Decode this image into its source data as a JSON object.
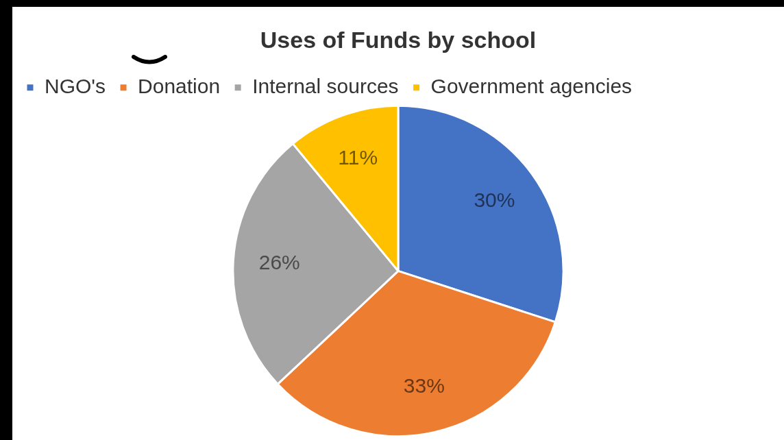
{
  "chart_data": {
    "type": "pie",
    "title": "Uses of Funds by school",
    "categories": [
      "NGO's",
      "Donation",
      "Internal sources",
      "Government agencies"
    ],
    "values": [
      30,
      33,
      26,
      11
    ],
    "colors": [
      "#4472c4",
      "#ed7d31",
      "#a5a5a5",
      "#ffc000"
    ],
    "value_labels": [
      "30%",
      "33%",
      "26%",
      "11%"
    ],
    "legend": "top left"
  }
}
